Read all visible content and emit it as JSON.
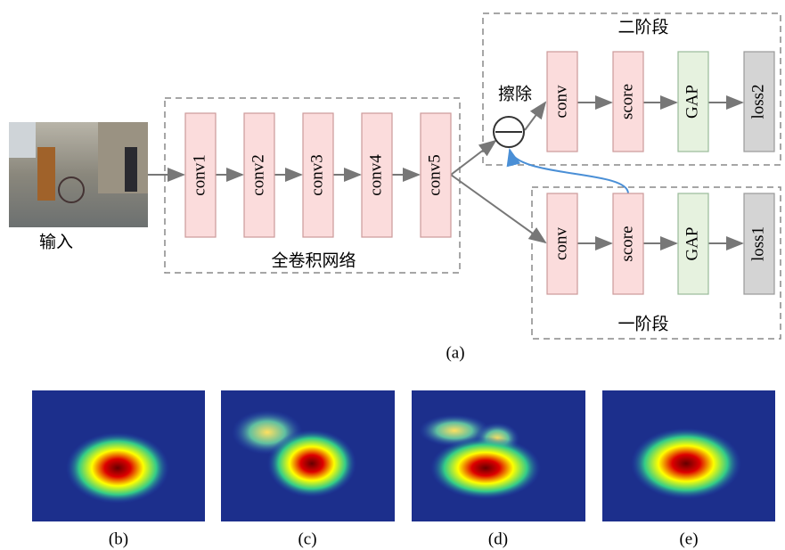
{
  "input_label": "输入",
  "backbone": {
    "label": "全卷积网络",
    "layers": [
      "conv1",
      "conv2",
      "conv3",
      "conv4",
      "conv5"
    ]
  },
  "erase_label": "擦除",
  "stage2": {
    "label": "二阶段",
    "blocks": [
      "conv",
      "score",
      "GAP",
      "loss2"
    ]
  },
  "stage1": {
    "label": "一阶段",
    "blocks": [
      "conv",
      "score",
      "GAP",
      "loss1"
    ]
  },
  "captions": [
    "(a)",
    "(b)",
    "(c)",
    "(d)",
    "(e)"
  ]
}
